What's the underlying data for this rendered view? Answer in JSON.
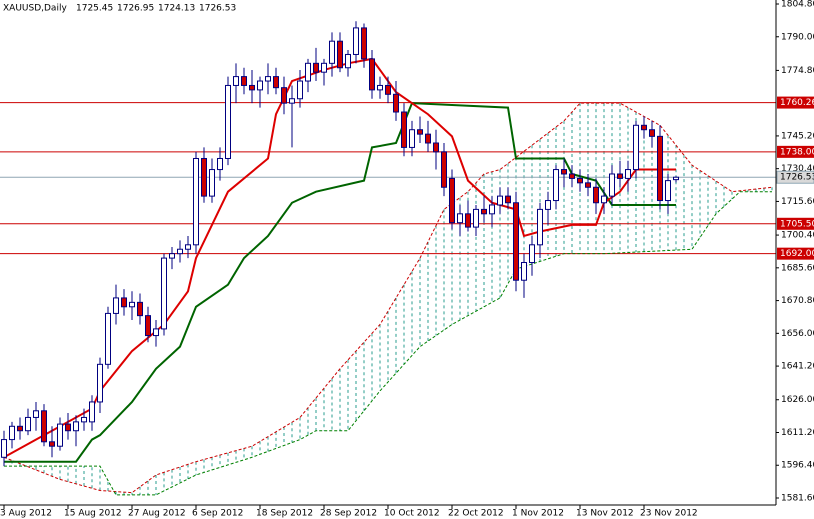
{
  "chart_data": {
    "type": "candlestick",
    "title": "XAUUSD,Daily",
    "ohlc": [
      [
        1600,
        1612,
        1596,
        1608
      ],
      [
        1608,
        1616,
        1604,
        1614
      ],
      [
        1614,
        1618,
        1608,
        1612
      ],
      [
        1612,
        1622,
        1610,
        1618
      ],
      [
        1618,
        1625,
        1612,
        1621
      ],
      [
        1621,
        1624,
        1605,
        1607
      ],
      [
        1607,
        1614,
        1600,
        1605
      ],
      [
        1605,
        1618,
        1603,
        1615
      ],
      [
        1615,
        1620,
        1608,
        1612
      ],
      [
        1612,
        1619,
        1605,
        1616
      ],
      [
        1616,
        1622,
        1612,
        1618
      ],
      [
        1616,
        1628,
        1612,
        1625
      ],
      [
        1625,
        1645,
        1620,
        1642
      ],
      [
        1642,
        1668,
        1640,
        1665
      ],
      [
        1665,
        1678,
        1660,
        1672
      ],
      [
        1672,
        1676,
        1664,
        1668
      ],
      [
        1668,
        1675,
        1662,
        1670
      ],
      [
        1670,
        1674,
        1660,
        1664
      ],
      [
        1664,
        1668,
        1652,
        1655
      ],
      [
        1655,
        1662,
        1650,
        1658
      ],
      [
        1658,
        1692,
        1655,
        1690
      ],
      [
        1690,
        1695,
        1685,
        1692
      ],
      [
        1692,
        1698,
        1688,
        1694
      ],
      [
        1694,
        1700,
        1690,
        1696
      ],
      [
        1696,
        1738,
        1692,
        1735
      ],
      [
        1735,
        1740,
        1715,
        1718
      ],
      [
        1718,
        1735,
        1715,
        1730
      ],
      [
        1730,
        1740,
        1725,
        1735
      ],
      [
        1735,
        1772,
        1732,
        1768
      ],
      [
        1768,
        1778,
        1760,
        1772
      ],
      [
        1772,
        1776,
        1764,
        1768
      ],
      [
        1768,
        1775,
        1760,
        1766
      ],
      [
        1766,
        1772,
        1758,
        1770
      ],
      [
        1770,
        1778,
        1764,
        1772
      ],
      [
        1772,
        1776,
        1764,
        1767
      ],
      [
        1767,
        1772,
        1755,
        1760
      ],
      [
        1760,
        1768,
        1740,
        1762
      ],
      [
        1762,
        1775,
        1758,
        1770
      ],
      [
        1770,
        1780,
        1765,
        1778
      ],
      [
        1778,
        1785,
        1770,
        1774
      ],
      [
        1774,
        1780,
        1768,
        1778
      ],
      [
        1778,
        1792,
        1772,
        1788
      ],
      [
        1788,
        1792,
        1774,
        1776
      ],
      [
        1776,
        1784,
        1772,
        1782
      ],
      [
        1782,
        1797,
        1778,
        1794
      ],
      [
        1794,
        1796,
        1776,
        1780
      ],
      [
        1780,
        1784,
        1762,
        1766
      ],
      [
        1766,
        1772,
        1762,
        1768
      ],
      [
        1768,
        1772,
        1760,
        1764
      ],
      [
        1764,
        1770,
        1752,
        1756
      ],
      [
        1756,
        1760,
        1736,
        1740
      ],
      [
        1740,
        1752,
        1736,
        1748
      ],
      [
        1748,
        1754,
        1742,
        1746
      ],
      [
        1746,
        1752,
        1738,
        1742
      ],
      [
        1742,
        1748,
        1730,
        1738
      ],
      [
        1738,
        1742,
        1718,
        1722
      ],
      [
        1726,
        1730,
        1703,
        1706
      ],
      [
        1706,
        1714,
        1700,
        1710
      ],
      [
        1710,
        1716,
        1702,
        1704
      ],
      [
        1704,
        1714,
        1700,
        1712
      ],
      [
        1712,
        1718,
        1706,
        1710
      ],
      [
        1710,
        1718,
        1704,
        1714
      ],
      [
        1714,
        1722,
        1710,
        1718
      ],
      [
        1718,
        1722,
        1712,
        1715
      ],
      [
        1715,
        1720,
        1675,
        1680
      ],
      [
        1680,
        1692,
        1672,
        1688
      ],
      [
        1688,
        1700,
        1682,
        1696
      ],
      [
        1696,
        1715,
        1690,
        1712
      ],
      [
        1712,
        1720,
        1705,
        1716
      ],
      [
        1716,
        1732,
        1712,
        1730
      ],
      [
        1730,
        1735,
        1722,
        1728
      ],
      [
        1728,
        1732,
        1722,
        1726
      ],
      [
        1726,
        1730,
        1720,
        1724
      ],
      [
        1724,
        1728,
        1718,
        1722
      ],
      [
        1722,
        1726,
        1710,
        1715
      ],
      [
        1715,
        1722,
        1710,
        1718
      ],
      [
        1718,
        1732,
        1714,
        1728
      ],
      [
        1728,
        1734,
        1722,
        1726
      ],
      [
        1726,
        1734,
        1720,
        1730
      ],
      [
        1730,
        1752,
        1726,
        1750
      ],
      [
        1750,
        1754,
        1744,
        1748
      ],
      [
        1748,
        1752,
        1740,
        1745
      ],
      [
        1745,
        1750,
        1712,
        1716
      ],
      [
        1716,
        1728,
        1710,
        1725
      ],
      [
        1725.45,
        1726.95,
        1724.13,
        1726.53
      ]
    ],
    "bull_color": "#ffffff",
    "bear_color": "#cc0000",
    "outline_color": "#000080",
    "lines": [
      {
        "color": "#cc0000",
        "dashed": true,
        "x": [
          0,
          7,
          12,
          16,
          19,
          24,
          31,
          37,
          42,
          47,
          52,
          55,
          58,
          60,
          62,
          70,
          72,
          77,
          82,
          86,
          91,
          96
        ],
        "values": [
          1600,
          1590,
          1585,
          1584,
          1592,
          1598,
          1605,
          1618,
          1640,
          1660,
          1690,
          1712,
          1720,
          1728,
          1730,
          1752,
          1760,
          1760,
          1750,
          1732,
          1720,
          1722
        ]
      },
      {
        "color": "#008000",
        "dashed": true,
        "x": [
          0,
          12,
          14,
          19,
          24,
          31,
          37,
          39,
          43,
          47,
          52,
          56,
          60,
          62,
          64,
          70,
          75,
          86,
          89,
          92,
          96
        ],
        "values": [
          1596,
          1596,
          1583,
          1583,
          1592,
          1600,
          1608,
          1612,
          1612,
          1630,
          1650,
          1660,
          1668,
          1672,
          1685,
          1692,
          1692,
          1694,
          1710,
          1720,
          1720
        ]
      },
      {
        "color": "#006400",
        "dashed": false,
        "x": [
          0,
          9,
          11,
          12,
          16,
          19,
          22,
          24,
          28,
          30,
          33,
          36,
          39,
          45,
          46,
          49,
          51,
          63,
          64,
          70,
          71,
          74,
          76,
          84
        ],
        "values": [
          1598,
          1598,
          1608,
          1610,
          1625,
          1640,
          1650,
          1668,
          1678,
          1690,
          1700,
          1715,
          1720,
          1725,
          1740,
          1742,
          1760,
          1758,
          1735,
          1735,
          1728,
          1725,
          1714,
          1714
        ]
      },
      {
        "color": "#dd0000",
        "dashed": false,
        "x": [
          0,
          6,
          11,
          12,
          16,
          20,
          23,
          24,
          28,
          33,
          34,
          36,
          40,
          43,
          46,
          49,
          53,
          56,
          58,
          61,
          64,
          65,
          67,
          71,
          74,
          75,
          77,
          79,
          84
        ],
        "values": [
          1600,
          1612,
          1622,
          1630,
          1648,
          1660,
          1675,
          1690,
          1720,
          1735,
          1755,
          1770,
          1775,
          1778,
          1780,
          1765,
          1755,
          1745,
          1725,
          1715,
          1712,
          1700,
          1702,
          1705,
          1705,
          1715,
          1720,
          1730,
          1730
        ]
      }
    ],
    "cloud_lines": [
      0,
      1
    ],
    "cloud_color": "#2a9d8f",
    "levels": [
      1760.26,
      {
        "value": 1738,
        "label": "1738.00"
      },
      {
        "value": 1705.5,
        "label": "1705.50"
      },
      {
        "value": 1692,
        "label": "1692.00"
      }
    ],
    "level_color": "#cc0000",
    "current_price": 1726.53,
    "current_color": "#8fa6b4",
    "xlim": [
      -0.5,
      96.5
    ],
    "xticks": [
      {
        "value": 0,
        "label": "3 Aug 2012"
      },
      {
        "value": 8,
        "label": "15 Aug 2012"
      },
      {
        "value": 16,
        "label": "27 Aug 2012"
      },
      {
        "value": 24,
        "label": "6 Sep 2012"
      },
      {
        "value": 32,
        "label": "18 Sep 2012"
      },
      {
        "value": 40,
        "label": "28 Sep 2012"
      },
      {
        "value": 48,
        "label": "10 Oct 2012"
      },
      {
        "value": 56,
        "label": "22 Oct 2012"
      },
      {
        "value": 64,
        "label": "1 Nov 2012"
      },
      {
        "value": 72,
        "label": "13 Nov 2012"
      },
      {
        "value": 80,
        "label": "23 Nov 2012"
      }
    ],
    "ylim": [
      1578.44,
      1806.61
    ],
    "yticks": [
      {
        "value": 1804.8,
        "label": "1804.80"
      },
      {
        "value": 1790,
        "label": "1790.00"
      },
      {
        "value": 1774.8,
        "label": "1774.80"
      },
      {
        "value": 1745.2,
        "label": "1745.20"
      },
      {
        "value": 1730.4,
        "label": "1730.40"
      },
      {
        "value": 1715.6,
        "label": "1715.60"
      },
      {
        "value": 1700.4,
        "label": "1700.40"
      },
      {
        "value": 1685.6,
        "label": "1685.60"
      },
      {
        "value": 1670.8,
        "label": "1670.80"
      },
      {
        "value": 1656,
        "label": "1656.00"
      },
      {
        "value": 1641.2,
        "label": "1641.20"
      },
      {
        "value": 1626,
        "label": "1626.00"
      },
      {
        "value": 1611.2,
        "label": "1611.20"
      },
      {
        "value": 1596.4,
        "label": "1596.40"
      },
      {
        "value": 1581.6,
        "label": "1581.60"
      }
    ]
  }
}
